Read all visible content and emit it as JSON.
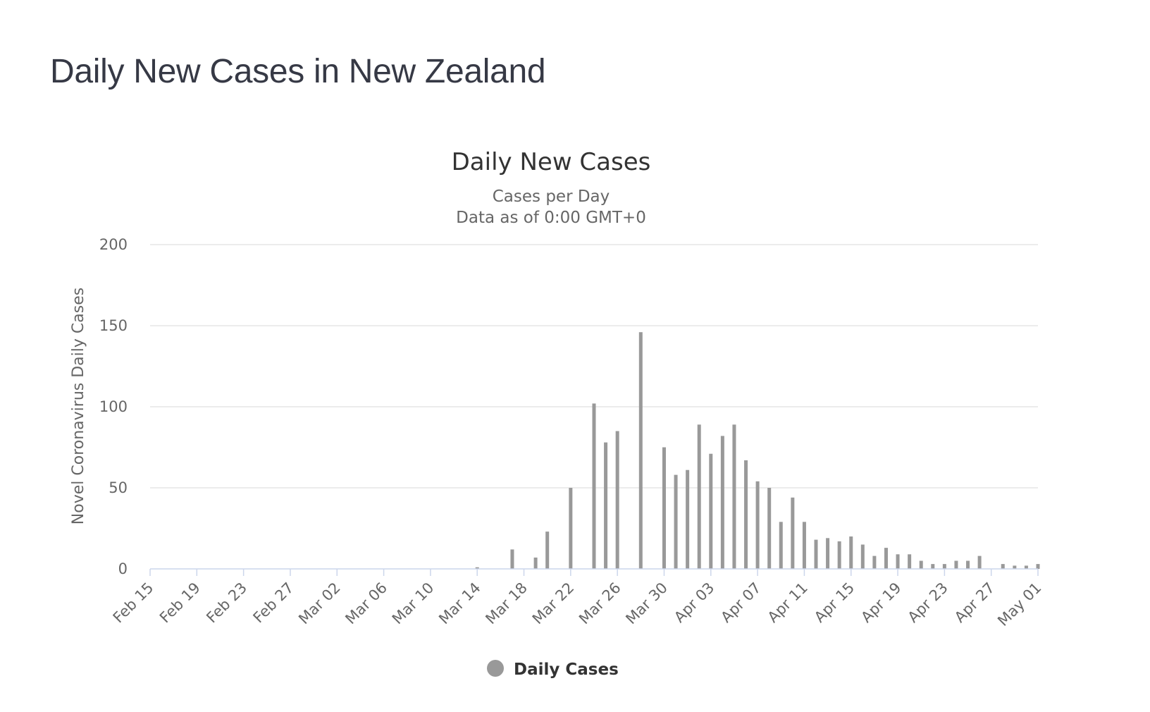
{
  "page": {
    "heading": "Daily New Cases in New Zealand"
  },
  "colors": {
    "bar": "#999999",
    "grid": "#e6e6e6",
    "axis_line": "#ccd6eb",
    "heading": "#363945"
  },
  "chart_data": {
    "type": "bar",
    "title": "Daily New Cases",
    "subtitle_lines": [
      "Cases per Day",
      "Data as of 0:00 GMT+0"
    ],
    "ylabel": "Novel Coronavirus Daily Cases",
    "xlabel": "",
    "ylim": [
      0,
      200
    ],
    "y_ticks": [
      0,
      50,
      100,
      150,
      200
    ],
    "grid": true,
    "legend_position": "bottom-center",
    "x_tick_labels": [
      "Feb 15",
      "Feb 19",
      "Feb 23",
      "Feb 27",
      "Mar 02",
      "Mar 06",
      "Mar 10",
      "Mar 14",
      "Mar 18",
      "Mar 22",
      "Mar 26",
      "Mar 30",
      "Apr 03",
      "Apr 07",
      "Apr 11",
      "Apr 15",
      "Apr 19",
      "Apr 23",
      "Apr 27",
      "May 01"
    ],
    "categories": [
      "Feb 15",
      "Feb 16",
      "Feb 17",
      "Feb 18",
      "Feb 19",
      "Feb 20",
      "Feb 21",
      "Feb 22",
      "Feb 23",
      "Feb 24",
      "Feb 25",
      "Feb 26",
      "Feb 27",
      "Feb 28",
      "Feb 29",
      "Mar 01",
      "Mar 02",
      "Mar 03",
      "Mar 04",
      "Mar 05",
      "Mar 06",
      "Mar 07",
      "Mar 08",
      "Mar 09",
      "Mar 10",
      "Mar 11",
      "Mar 12",
      "Mar 13",
      "Mar 14",
      "Mar 15",
      "Mar 16",
      "Mar 17",
      "Mar 18",
      "Mar 19",
      "Mar 20",
      "Mar 21",
      "Mar 22",
      "Mar 23",
      "Mar 24",
      "Mar 25",
      "Mar 26",
      "Mar 27",
      "Mar 28",
      "Mar 29",
      "Mar 30",
      "Mar 31",
      "Apr 01",
      "Apr 02",
      "Apr 03",
      "Apr 04",
      "Apr 05",
      "Apr 06",
      "Apr 07",
      "Apr 08",
      "Apr 09",
      "Apr 10",
      "Apr 11",
      "Apr 12",
      "Apr 13",
      "Apr 14",
      "Apr 15",
      "Apr 16",
      "Apr 17",
      "Apr 18",
      "Apr 19",
      "Apr 20",
      "Apr 21",
      "Apr 22",
      "Apr 23",
      "Apr 24",
      "Apr 25",
      "Apr 26",
      "Apr 27",
      "Apr 28",
      "Apr 29",
      "Apr 30",
      "May 01"
    ],
    "series": [
      {
        "name": "Daily Cases",
        "values": [
          0,
          0,
          0,
          0,
          0,
          0,
          0,
          0,
          0,
          0,
          0,
          0,
          0,
          0,
          0,
          0,
          0,
          0,
          0,
          0,
          0,
          0,
          0,
          0,
          0,
          0,
          0,
          0,
          1,
          0,
          0,
          12,
          0,
          7,
          23,
          0,
          50,
          0,
          102,
          78,
          85,
          0,
          146,
          0,
          75,
          58,
          61,
          89,
          71,
          82,
          89,
          67,
          54,
          50,
          29,
          44,
          29,
          18,
          19,
          17,
          20,
          15,
          8,
          13,
          9,
          9,
          5,
          3,
          3,
          5,
          5,
          8,
          0,
          3,
          2,
          2,
          3
        ]
      }
    ]
  }
}
